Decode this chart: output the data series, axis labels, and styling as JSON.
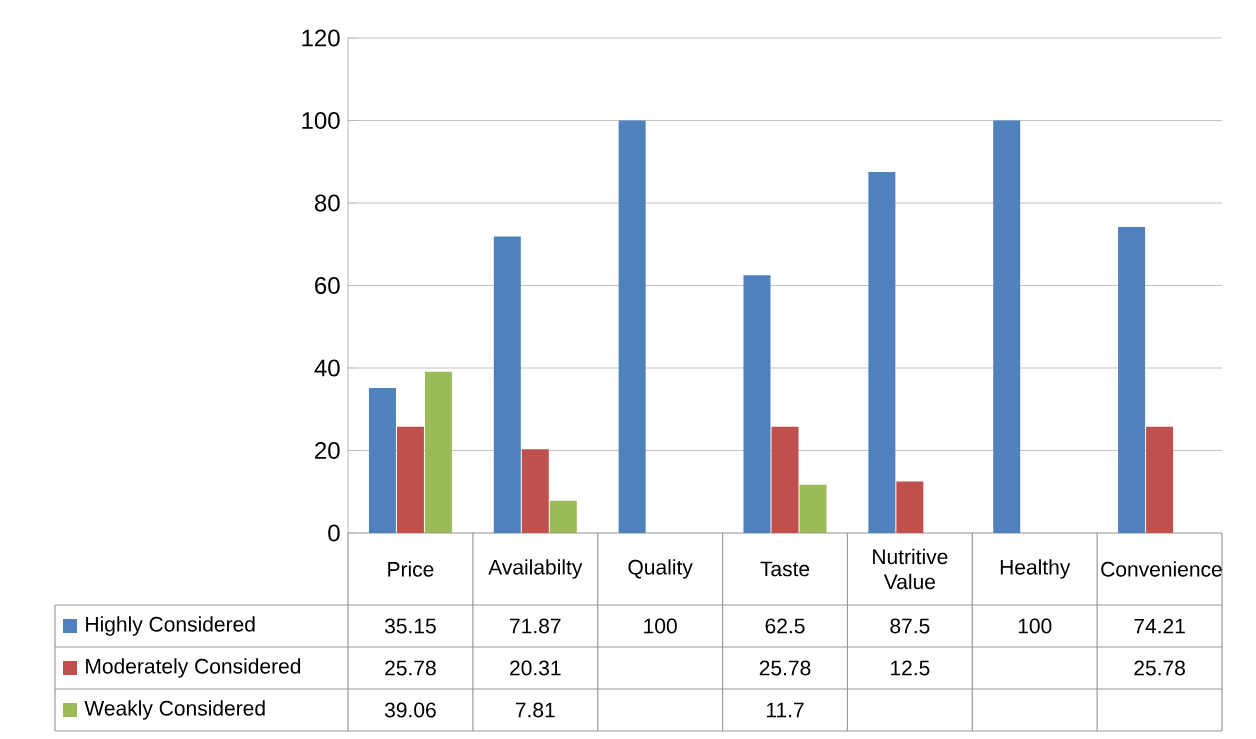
{
  "chart_data": {
    "type": "bar",
    "categories": [
      "Price",
      "Availabilty",
      "Quality",
      "Taste",
      "Nutritive Value",
      "Healthy",
      "Convenience"
    ],
    "series": [
      {
        "name": "Highly Considered",
        "color": "#4f81bd",
        "values": [
          35.15,
          71.87,
          100,
          62.5,
          87.5,
          100,
          74.21
        ]
      },
      {
        "name": "Moderately Considered",
        "color": "#c0504d",
        "values": [
          25.78,
          20.31,
          null,
          25.78,
          12.5,
          null,
          25.78
        ]
      },
      {
        "name": "Weakly Considered",
        "color": "#9bbb59",
        "values": [
          39.06,
          7.81,
          null,
          11.7,
          null,
          null,
          null
        ]
      }
    ],
    "ylim": [
      0,
      120
    ],
    "yticks": [
      0,
      20,
      40,
      60,
      80,
      100,
      120
    ],
    "grid": "y",
    "legend": "bottom",
    "data_labels": true
  }
}
